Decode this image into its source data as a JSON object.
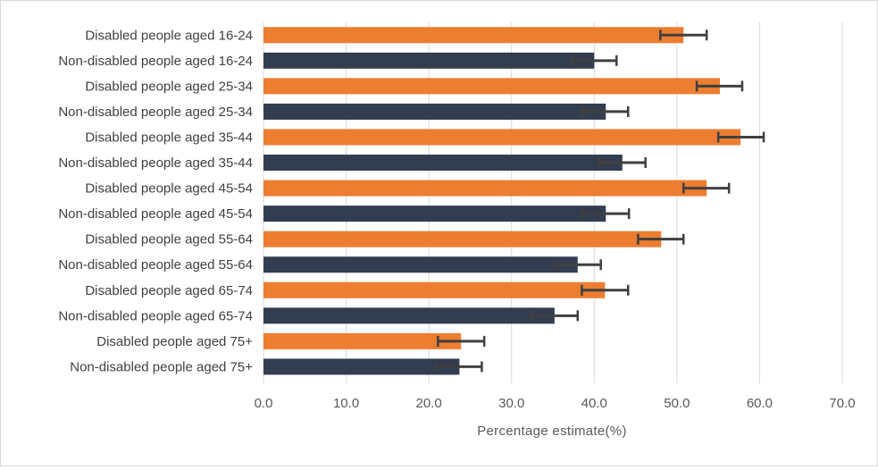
{
  "chart_data": {
    "type": "bar",
    "orientation": "horizontal",
    "xlabel": "Percentage estimate(%)",
    "xlim": [
      0,
      70
    ],
    "xticks": [
      "0.0",
      "10.0",
      "20.0",
      "30.0",
      "40.0",
      "50.0",
      "60.0",
      "70.0"
    ],
    "grid": true,
    "colors": {
      "disabled": "#ED7D31",
      "non_disabled": "#323E4F",
      "error_bar": "#404040",
      "grid": "#d9d9d9"
    },
    "bars": [
      {
        "label": "Disabled people aged 16-24",
        "group": "disabled",
        "value": 50.8,
        "ci_low": 48.0,
        "ci_high": 53.6
      },
      {
        "label": "Non-disabled people aged 16-24",
        "group": "non_disabled",
        "value": 40.0,
        "ci_low": 37.3,
        "ci_high": 42.7
      },
      {
        "label": "Disabled people aged 25-34",
        "group": "disabled",
        "value": 55.2,
        "ci_low": 52.4,
        "ci_high": 57.9
      },
      {
        "label": "Non-disabled people aged 25-34",
        "group": "non_disabled",
        "value": 41.4,
        "ci_low": 38.6,
        "ci_high": 44.1
      },
      {
        "label": "Disabled people aged 35-44",
        "group": "disabled",
        "value": 57.7,
        "ci_low": 55.0,
        "ci_high": 60.5
      },
      {
        "label": "Non-disabled people aged 35-44",
        "group": "non_disabled",
        "value": 43.4,
        "ci_low": 40.6,
        "ci_high": 46.2
      },
      {
        "label": "Disabled people aged 45-54",
        "group": "disabled",
        "value": 53.6,
        "ci_low": 50.8,
        "ci_high": 56.3
      },
      {
        "label": "Non-disabled people aged 45-54",
        "group": "non_disabled",
        "value": 41.4,
        "ci_low": 38.6,
        "ci_high": 44.2
      },
      {
        "label": "Disabled people aged 55-64",
        "group": "disabled",
        "value": 48.1,
        "ci_low": 45.3,
        "ci_high": 50.8
      },
      {
        "label": "Non-disabled people aged 55-64",
        "group": "non_disabled",
        "value": 38.0,
        "ci_low": 35.2,
        "ci_high": 40.8
      },
      {
        "label": "Disabled people aged 65-74",
        "group": "disabled",
        "value": 41.3,
        "ci_low": 38.5,
        "ci_high": 44.1
      },
      {
        "label": "Non-disabled people aged 65-74",
        "group": "non_disabled",
        "value": 35.2,
        "ci_low": 32.4,
        "ci_high": 38.0
      },
      {
        "label": "Disabled people aged 75+",
        "group": "disabled",
        "value": 23.9,
        "ci_low": 21.1,
        "ci_high": 26.7
      },
      {
        "label": "Non-disabled people aged 75+",
        "group": "non_disabled",
        "value": 23.7,
        "ci_low": 20.9,
        "ci_high": 26.4
      }
    ]
  }
}
